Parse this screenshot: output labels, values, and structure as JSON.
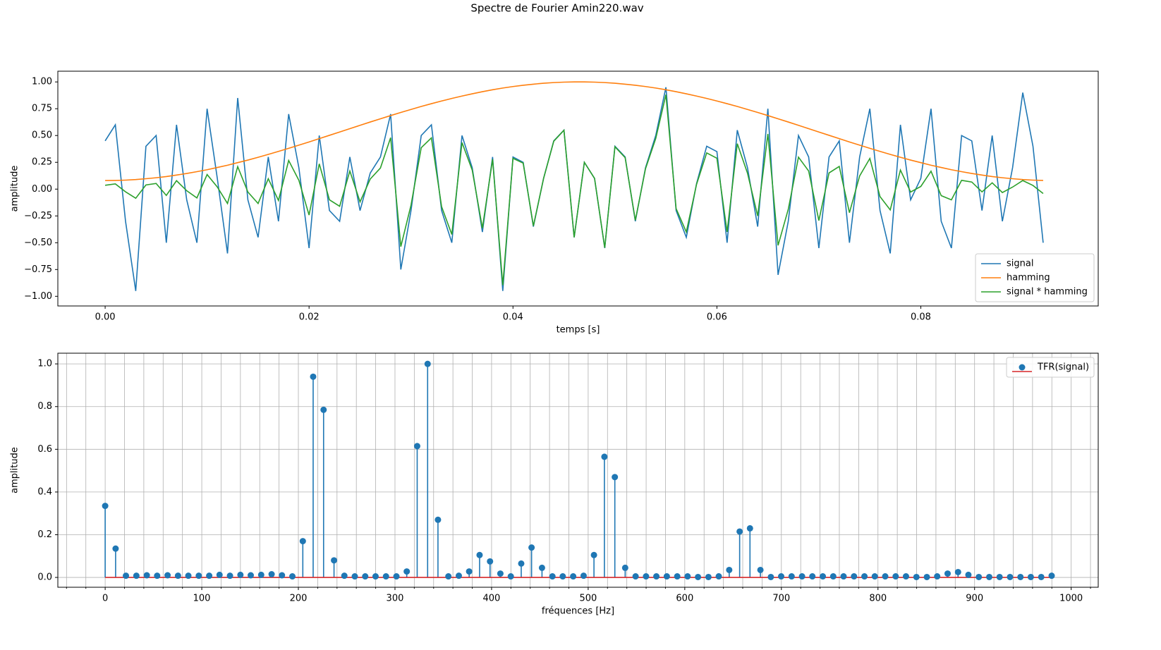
{
  "title": "Spectre de Fourier Amin220.wav",
  "chart_data": [
    {
      "type": "line",
      "xlabel": "temps [s]",
      "ylabel": "amplitude",
      "x": [
        0,
        0.001,
        0.002,
        0.003,
        0.004,
        0.005,
        0.006,
        0.007,
        0.008,
        0.009,
        0.01,
        0.011,
        0.012,
        0.013,
        0.014,
        0.015,
        0.016,
        0.017,
        0.018,
        0.019,
        0.02,
        0.021,
        0.022,
        0.023,
        0.024,
        0.025,
        0.026,
        0.027,
        0.028,
        0.029,
        0.03,
        0.031,
        0.032,
        0.033,
        0.034,
        0.035,
        0.036,
        0.037,
        0.038,
        0.039,
        0.04,
        0.041,
        0.042,
        0.043,
        0.044,
        0.045,
        0.046,
        0.047,
        0.048,
        0.049,
        0.05,
        0.051,
        0.052,
        0.053,
        0.054,
        0.055,
        0.056,
        0.057,
        0.058,
        0.059,
        0.06,
        0.061,
        0.062,
        0.063,
        0.064,
        0.065,
        0.066,
        0.067,
        0.068,
        0.069,
        0.07,
        0.071,
        0.072,
        0.073,
        0.074,
        0.075,
        0.076,
        0.077,
        0.078,
        0.079,
        0.08,
        0.081,
        0.082,
        0.083,
        0.084,
        0.085,
        0.086,
        0.087,
        0.088,
        0.089,
        0.09,
        0.091,
        0.092
      ],
      "series": [
        {
          "name": "signal",
          "color": "#1f77b4",
          "values": [
            0.45,
            0.6,
            -0.3,
            -0.95,
            0.4,
            0.5,
            -0.5,
            0.6,
            -0.1,
            -0.5,
            0.75,
            0.1,
            -0.6,
            0.85,
            -0.1,
            -0.45,
            0.3,
            -0.3,
            0.7,
            0.2,
            -0.55,
            0.5,
            -0.2,
            -0.3,
            0.3,
            -0.2,
            0.15,
            0.3,
            0.7,
            -0.75,
            -0.2,
            0.5,
            0.6,
            -0.2,
            -0.5,
            0.5,
            0.2,
            -0.4,
            0.3,
            -0.95,
            0.3,
            0.25,
            -0.35,
            0.1,
            0.45,
            0.55,
            -0.45,
            0.25,
            0.1,
            -0.55,
            0.4,
            0.3,
            -0.3,
            0.2,
            0.5,
            0.95,
            -0.2,
            -0.45,
            0.05,
            0.4,
            0.35,
            -0.5,
            0.55,
            0.2,
            -0.35,
            0.75,
            -0.8,
            -0.3,
            0.5,
            0.3,
            -0.55,
            0.3,
            0.45,
            -0.5,
            0.3,
            0.75,
            -0.2,
            -0.6,
            0.6,
            -0.1,
            0.1,
            0.75,
            -0.3,
            -0.55,
            0.5,
            0.45,
            -0.2,
            0.5,
            -0.3,
            0.2,
            0.9,
            0.4,
            -0.5
          ]
        },
        {
          "name": "hamming",
          "color": "#ff7f0e",
          "values": [
            0.08,
            0.081,
            0.084,
            0.089,
            0.097,
            0.106,
            0.117,
            0.131,
            0.146,
            0.163,
            0.181,
            0.202,
            0.223,
            0.247,
            0.271,
            0.297,
            0.324,
            0.352,
            0.381,
            0.41,
            0.44,
            0.471,
            0.502,
            0.533,
            0.564,
            0.595,
            0.626,
            0.656,
            0.686,
            0.715,
            0.743,
            0.771,
            0.797,
            0.822,
            0.846,
            0.868,
            0.889,
            0.909,
            0.927,
            0.943,
            0.957,
            0.969,
            0.979,
            0.988,
            0.994,
            0.998,
            1.0,
            1.0,
            0.998,
            0.994,
            0.988,
            0.979,
            0.969,
            0.957,
            0.943,
            0.927,
            0.909,
            0.889,
            0.868,
            0.846,
            0.822,
            0.797,
            0.771,
            0.743,
            0.715,
            0.686,
            0.656,
            0.626,
            0.595,
            0.564,
            0.533,
            0.502,
            0.471,
            0.44,
            0.41,
            0.381,
            0.352,
            0.324,
            0.297,
            0.271,
            0.247,
            0.223,
            0.202,
            0.181,
            0.163,
            0.146,
            0.131,
            0.117,
            0.106,
            0.097,
            0.089,
            0.084,
            0.081
          ]
        },
        {
          "name": "signal * hamming",
          "color": "#2ca02c",
          "values": [
            0.036,
            0.049,
            -0.025,
            -0.085,
            0.039,
            0.053,
            -0.059,
            0.079,
            -0.015,
            -0.082,
            0.136,
            0.02,
            -0.134,
            0.21,
            -0.027,
            -0.134,
            0.097,
            -0.106,
            0.267,
            0.082,
            -0.242,
            0.236,
            -0.1,
            -0.16,
            0.169,
            -0.119,
            0.094,
            0.197,
            0.48,
            -0.536,
            -0.149,
            0.386,
            0.478,
            -0.164,
            -0.423,
            0.434,
            0.178,
            -0.364,
            0.278,
            -0.896,
            0.287,
            0.242,
            -0.343,
            0.099,
            0.447,
            0.549,
            -0.45,
            0.25,
            0.1,
            -0.547,
            0.395,
            0.294,
            -0.291,
            0.191,
            0.472,
            0.881,
            -0.182,
            -0.4,
            0.043,
            0.338,
            0.288,
            -0.399,
            0.424,
            0.149,
            -0.25,
            0.515,
            -0.525,
            -0.188,
            0.298,
            0.169,
            -0.293,
            0.151,
            0.212,
            -0.22,
            0.123,
            0.286,
            -0.07,
            -0.194,
            0.178,
            -0.027,
            0.025,
            0.167,
            -0.061,
            -0.1,
            0.082,
            0.066,
            -0.026,
            0.059,
            -0.032,
            0.019,
            0.08,
            0.034,
            -0.041
          ]
        }
      ],
      "xlim": [
        -0.00464,
        0.0974
      ],
      "ylim": [
        -1.09,
        1.1
      ],
      "xticks": [
        {
          "value": 0,
          "label": "0.00"
        },
        {
          "value": 0.02,
          "label": "0.02"
        },
        {
          "value": 0.04,
          "label": "0.04"
        },
        {
          "value": 0.06,
          "label": "0.06"
        },
        {
          "value": 0.08,
          "label": "0.08"
        }
      ],
      "yticks": [
        {
          "value": -1,
          "label": "−1.00"
        },
        {
          "value": -0.75,
          "label": "−0.75"
        },
        {
          "value": -0.5,
          "label": "−0.50"
        },
        {
          "value": -0.25,
          "label": "−0.25"
        },
        {
          "value": 0,
          "label": "0.00"
        },
        {
          "value": 0.25,
          "label": "0.25"
        },
        {
          "value": 0.5,
          "label": "0.50"
        },
        {
          "value": 0.75,
          "label": "0.75"
        },
        {
          "value": 1,
          "label": "1.00"
        }
      ],
      "grid": false,
      "legend": "lower right"
    },
    {
      "type": "stem",
      "xlabel": "fréquences [Hz]",
      "ylabel": "amplitude",
      "x": [
        0,
        10.8,
        21.5,
        32.3,
        43.1,
        53.8,
        64.6,
        75.4,
        86.1,
        96.9,
        107.7,
        118.4,
        129.2,
        140.0,
        150.7,
        161.5,
        172.3,
        183.0,
        193.8,
        204.6,
        215.3,
        226.1,
        236.9,
        247.6,
        258.4,
        269.2,
        279.9,
        290.7,
        301.5,
        312.2,
        323.0,
        333.8,
        344.5,
        355.3,
        366.1,
        376.8,
        387.6,
        398.4,
        409.1,
        419.9,
        430.7,
        441.4,
        452.2,
        463.0,
        473.7,
        484.5,
        495.3,
        506.0,
        516.8,
        527.6,
        538.3,
        549.1,
        559.9,
        570.6,
        581.4,
        592.2,
        602.9,
        613.7,
        624.5,
        635.2,
        646.0,
        656.8,
        667.5,
        678.3,
        689.1,
        699.8,
        710.6,
        721.4,
        732.1,
        742.9,
        753.7,
        764.4,
        775.2,
        786.0,
        796.7,
        807.5,
        818.3,
        829.0,
        839.8,
        850.6,
        861.3,
        872.1,
        882.9,
        893.6,
        904.4,
        915.2,
        925.9,
        936.7,
        947.5,
        958.2,
        969.0,
        979.8
      ],
      "series": [
        {
          "name": "TFR(signal)",
          "color": "#1f77b4",
          "baseline_color": "#d62728",
          "values": [
            0.335,
            0.135,
            0.008,
            0.008,
            0.01,
            0.008,
            0.01,
            0.008,
            0.008,
            0.008,
            0.008,
            0.012,
            0.008,
            0.012,
            0.01,
            0.012,
            0.015,
            0.01,
            0.005,
            0.17,
            0.94,
            0.785,
            0.08,
            0.008,
            0.005,
            0.005,
            0.005,
            0.005,
            0.005,
            0.028,
            0.615,
            1.0,
            0.27,
            0.005,
            0.008,
            0.028,
            0.105,
            0.075,
            0.018,
            0.005,
            0.065,
            0.14,
            0.045,
            0.005,
            0.005,
            0.005,
            0.008,
            0.105,
            0.565,
            0.47,
            0.045,
            0.005,
            0.005,
            0.005,
            0.005,
            0.005,
            0.005,
            0.002,
            0.002,
            0.005,
            0.035,
            0.215,
            0.23,
            0.035,
            0.002,
            0.005,
            0.005,
            0.005,
            0.005,
            0.005,
            0.005,
            0.005,
            0.005,
            0.005,
            0.005,
            0.005,
            0.005,
            0.005,
            0.002,
            0.002,
            0.005,
            0.018,
            0.025,
            0.012,
            0.002,
            0.002,
            0.002,
            0.002,
            0.002,
            0.002,
            0.002,
            0.008
          ]
        }
      ],
      "xlim": [
        -49,
        1028
      ],
      "ylim": [
        -0.046,
        1.05
      ],
      "xticks": [
        0,
        100,
        200,
        300,
        400,
        500,
        600,
        700,
        800,
        900,
        1000
      ],
      "xminorticks": [
        -40,
        -20,
        20,
        40,
        60,
        80,
        120,
        140,
        160,
        180,
        220,
        240,
        260,
        280,
        320,
        340,
        360,
        380,
        420,
        440,
        460,
        480,
        520,
        540,
        560,
        580,
        620,
        640,
        660,
        680,
        720,
        740,
        760,
        780,
        820,
        840,
        860,
        880,
        920,
        940,
        960,
        980,
        1020
      ],
      "yticks": [
        {
          "value": 0,
          "label": "0.0"
        },
        {
          "value": 0.2,
          "label": "0.2"
        },
        {
          "value": 0.4,
          "label": "0.4"
        },
        {
          "value": 0.6,
          "label": "0.6"
        },
        {
          "value": 0.8,
          "label": "0.8"
        },
        {
          "value": 1,
          "label": "1.0"
        }
      ],
      "grid": true,
      "legend": "upper right"
    }
  ]
}
